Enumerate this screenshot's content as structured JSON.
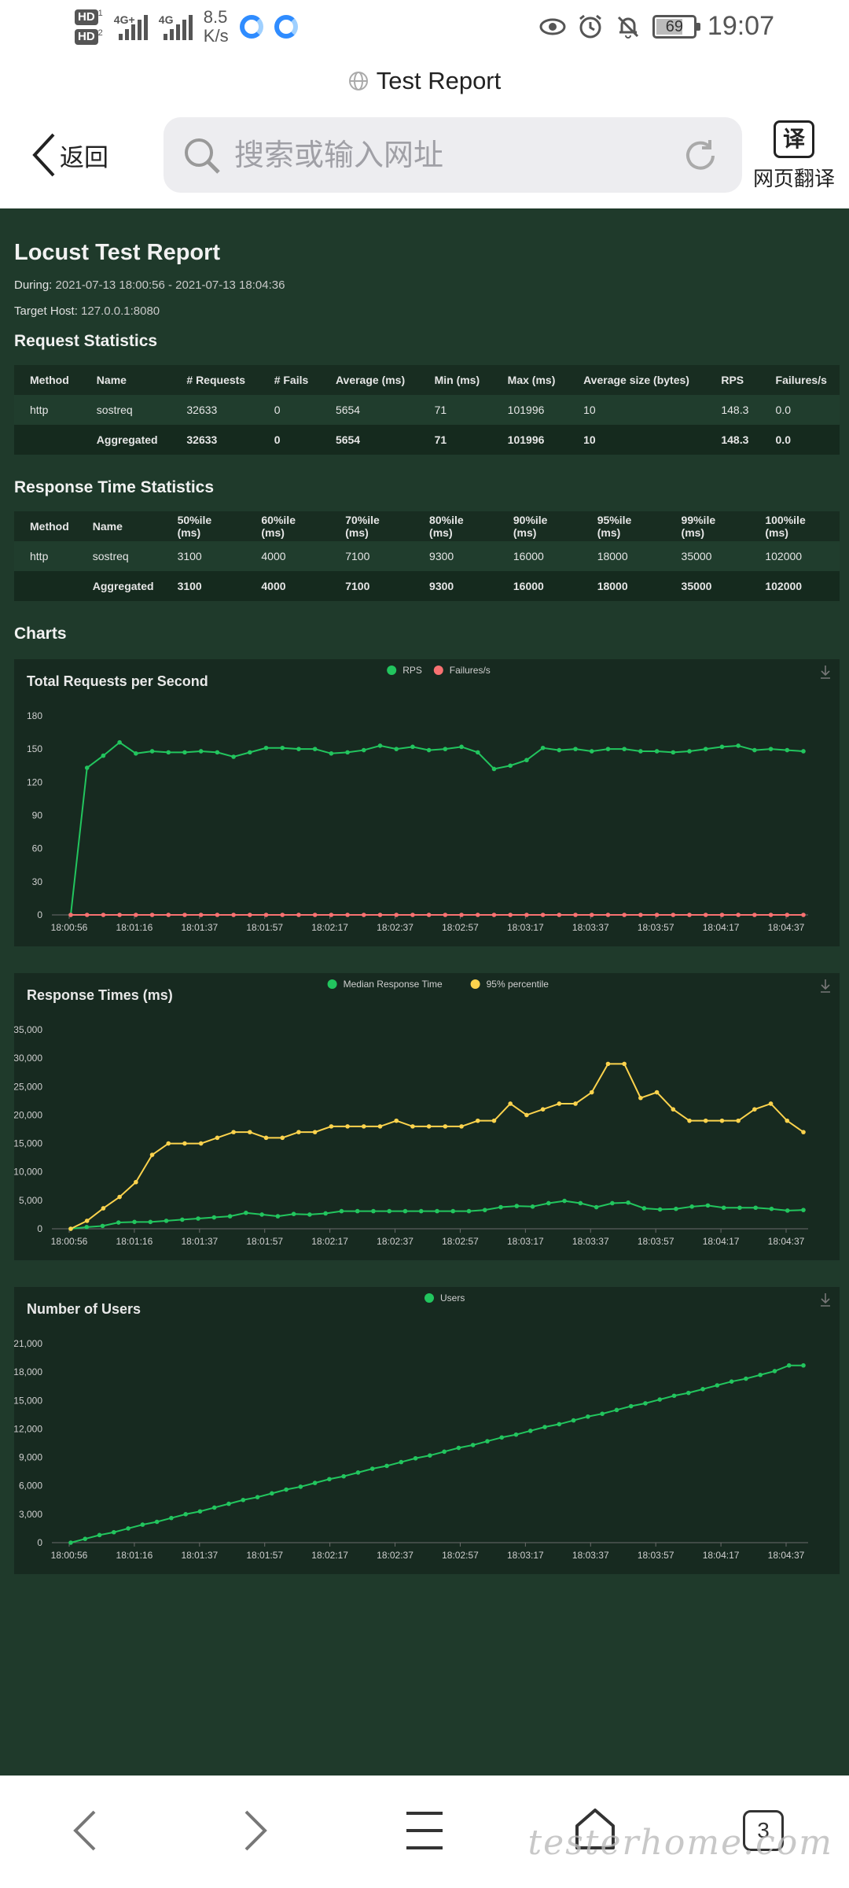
{
  "status_bar": {
    "sim1": "HD",
    "sim1_sub": "1",
    "sim2": "HD",
    "sim2_sub": "2",
    "net1": "4G+",
    "net2": "4G",
    "speed_value": "8.5",
    "speed_unit": "K/s",
    "battery": "69",
    "time": "19:07"
  },
  "browser": {
    "page_title": "Test Report",
    "back_label": "返回",
    "search_placeholder": "搜索或输入网址",
    "translate_icon_text": "译",
    "translate_label": "网页翻译",
    "tabs_count": "3"
  },
  "watermark": "testerhome.com",
  "report": {
    "title": "Locust Test Report",
    "during_label": "During:",
    "during_value": "2021-07-13 18:00:56 - 2021-07-13 18:04:36",
    "host_label": "Target Host:",
    "host_value": "127.0.0.1:8080",
    "request_stats": {
      "heading": "Request Statistics",
      "columns": [
        "Method",
        "Name",
        "# Requests",
        "# Fails",
        "Average (ms)",
        "Min (ms)",
        "Max (ms)",
        "Average size (bytes)",
        "RPS",
        "Failures/s"
      ],
      "rows": [
        [
          "http",
          "sostreq",
          "32633",
          "0",
          "5654",
          "71",
          "101996",
          "10",
          "148.3",
          "0.0"
        ],
        [
          "",
          "Aggregated",
          "32633",
          "0",
          "5654",
          "71",
          "101996",
          "10",
          "148.3",
          "0.0"
        ]
      ]
    },
    "response_stats": {
      "heading": "Response Time Statistics",
      "columns": [
        "Method",
        "Name",
        "50%ile (ms)",
        "60%ile (ms)",
        "70%ile (ms)",
        "80%ile (ms)",
        "90%ile (ms)",
        "95%ile (ms)",
        "99%ile (ms)",
        "100%ile (ms)"
      ],
      "rows": [
        [
          "http",
          "sostreq",
          "3100",
          "4000",
          "7100",
          "9300",
          "16000",
          "18000",
          "35000",
          "102000"
        ],
        [
          "",
          "Aggregated",
          "3100",
          "4000",
          "7100",
          "9300",
          "16000",
          "18000",
          "35000",
          "102000"
        ]
      ]
    },
    "charts_heading": "Charts"
  },
  "chart_data": [
    {
      "type": "line",
      "title": "Total Requests per Second",
      "ylim": [
        0,
        180
      ],
      "yticks": [
        "0",
        "30",
        "60",
        "90",
        "120",
        "150",
        "180"
      ],
      "xtick_labels": [
        "18:00:56",
        "18:01:16",
        "18:01:37",
        "18:01:57",
        "18:02:17",
        "18:02:37",
        "18:02:57",
        "18:03:17",
        "18:03:37",
        "18:03:57",
        "18:04:17",
        "18:04:37"
      ],
      "legend_position": "top-center",
      "series": [
        {
          "name": "RPS",
          "color": "#22c55e",
          "values": [
            0,
            133,
            144,
            156,
            146,
            148,
            147,
            147,
            148,
            147,
            143,
            147,
            151,
            151,
            150,
            150,
            146,
            147,
            149,
            153,
            150,
            152,
            149,
            150,
            152,
            147,
            132,
            135,
            140,
            151,
            149,
            150,
            148,
            150,
            150,
            148,
            148,
            147,
            148,
            150,
            152,
            153,
            149,
            150,
            149,
            148
          ]
        },
        {
          "name": "Failures/s",
          "color": "#f87171",
          "values": [
            0,
            0,
            0,
            0,
            0,
            0,
            0,
            0,
            0,
            0,
            0,
            0,
            0,
            0,
            0,
            0,
            0,
            0,
            0,
            0,
            0,
            0,
            0,
            0,
            0,
            0,
            0,
            0,
            0,
            0,
            0,
            0,
            0,
            0,
            0,
            0,
            0,
            0,
            0,
            0,
            0,
            0,
            0,
            0,
            0,
            0
          ]
        }
      ]
    },
    {
      "type": "line",
      "title": "Response Times (ms)",
      "ylim": [
        0,
        35000
      ],
      "yticks": [
        "0",
        "5,000",
        "10,000",
        "15,000",
        "20,000",
        "25,000",
        "30,000",
        "35,000"
      ],
      "xtick_labels": [
        "18:00:56",
        "18:01:16",
        "18:01:37",
        "18:01:57",
        "18:02:17",
        "18:02:37",
        "18:02:57",
        "18:03:17",
        "18:03:37",
        "18:03:57",
        "18:04:17",
        "18:04:37"
      ],
      "legend_position": "top-center",
      "series": [
        {
          "name": "Median Response Time",
          "color": "#22c55e",
          "values": [
            0,
            300,
            500,
            1100,
            1200,
            1200,
            1400,
            1600,
            1800,
            2000,
            2200,
            2800,
            2500,
            2200,
            2600,
            2500,
            2700,
            3100,
            3100,
            3100,
            3100,
            3100,
            3100,
            3100,
            3100,
            3100,
            3300,
            3800,
            4000,
            3900,
            4500,
            4900,
            4500,
            3800,
            4500,
            4600,
            3600,
            3400,
            3500,
            3900,
            4100,
            3700,
            3700,
            3700,
            3500,
            3200,
            3300
          ]
        },
        {
          "name": "95% percentile",
          "color": "#fcd34d",
          "values": [
            0,
            1400,
            3600,
            5600,
            8200,
            13000,
            15000,
            15000,
            15000,
            16000,
            17000,
            17000,
            16000,
            16000,
            17000,
            17000,
            18000,
            18000,
            18000,
            18000,
            19000,
            18000,
            18000,
            18000,
            18000,
            19000,
            19000,
            22000,
            20000,
            21000,
            22000,
            22000,
            24000,
            29000,
            29000,
            23000,
            24000,
            21000,
            19000,
            19000,
            19000,
            19000,
            21000,
            22000,
            19000,
            17000
          ]
        }
      ]
    },
    {
      "type": "line",
      "title": "Number of Users",
      "ylim": [
        0,
        21000
      ],
      "yticks": [
        "0",
        "3,000",
        "6,000",
        "9,000",
        "12,000",
        "15,000",
        "18,000",
        "21,000"
      ],
      "xtick_labels": [
        "18:00:56",
        "18:01:16",
        "18:01:37",
        "18:01:57",
        "18:02:17",
        "18:02:37",
        "18:02:57",
        "18:03:17",
        "18:03:37",
        "18:03:57",
        "18:04:17",
        "18:04:37"
      ],
      "legend_position": "top-center",
      "series": [
        {
          "name": "Users",
          "color": "#22c55e",
          "values": [
            0,
            400,
            800,
            1100,
            1500,
            1900,
            2200,
            2600,
            3000,
            3300,
            3700,
            4100,
            4500,
            4800,
            5200,
            5600,
            5900,
            6300,
            6700,
            7000,
            7400,
            7800,
            8100,
            8500,
            8900,
            9200,
            9600,
            10000,
            10300,
            10700,
            11100,
            11400,
            11800,
            12200,
            12500,
            12900,
            13300,
            13600,
            14000,
            14400,
            14700,
            15100,
            15500,
            15800,
            16200,
            16600,
            17000,
            17300,
            17700,
            18100,
            18700,
            18700
          ]
        }
      ]
    }
  ]
}
